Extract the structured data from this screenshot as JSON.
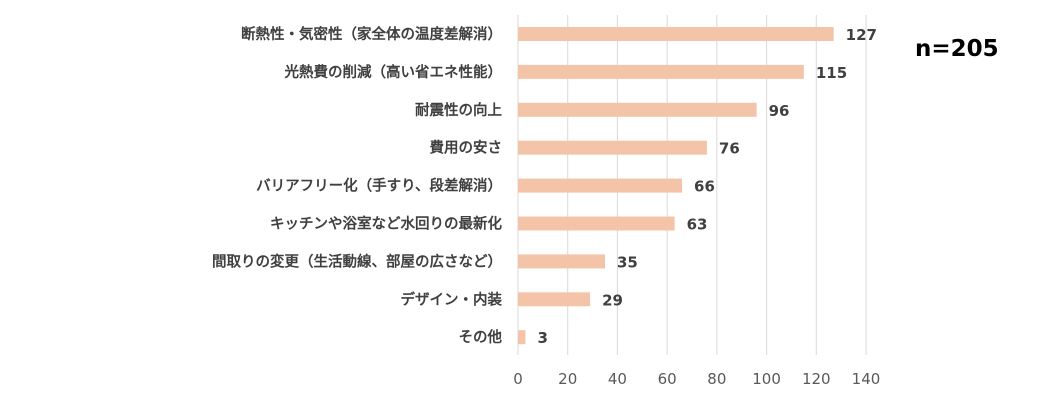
{
  "chart_data": {
    "type": "bar",
    "orientation": "horizontal",
    "categories": [
      "断熱性・気密性（家全体の温度差解消）",
      "光熱費の削減（高い省エネ性能）",
      "耐震性の向上",
      "費用の安さ",
      "バリアフリー化（手すり、段差解消）",
      "キッチンや浴室など水回りの最新化",
      "間取りの変更（生活動線、部屋の広さなど）",
      "デザイン・内装",
      "その他"
    ],
    "values": [
      127,
      115,
      96,
      76,
      66,
      63,
      35,
      29,
      3
    ],
    "xlim": [
      0,
      140
    ],
    "xticks": [
      0,
      20,
      40,
      60,
      80,
      100,
      120,
      140
    ],
    "grid": "vertical",
    "data_labels": true,
    "annotation": "n=205",
    "colors": {
      "bar": "#F4C4A8",
      "grid": "#D9D9D9",
      "text": "#404040"
    }
  }
}
